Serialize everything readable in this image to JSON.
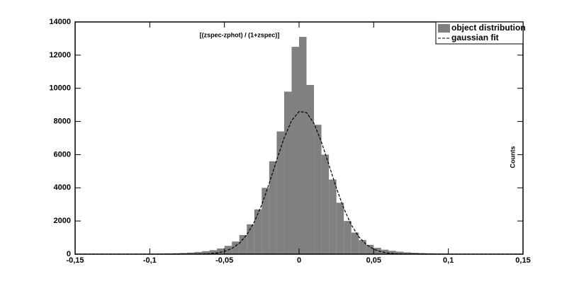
{
  "chart_data": {
    "type": "histogram",
    "annotation": "[(zspec-zphot) / (1+zspec)]",
    "y_label": "Counts",
    "bins": [
      -0.15,
      -0.145,
      -0.14,
      -0.135,
      -0.13,
      -0.125,
      -0.12,
      -0.115,
      -0.11,
      -0.105,
      -0.1,
      -0.095,
      -0.09,
      -0.085,
      -0.08,
      -0.075,
      -0.07,
      -0.065,
      -0.06,
      -0.055,
      -0.05,
      -0.045,
      -0.04,
      -0.035,
      -0.03,
      -0.025,
      -0.02,
      -0.015,
      -0.01,
      -0.005,
      0,
      0.005,
      0.01,
      0.015,
      0.02,
      0.025,
      0.03,
      0.035,
      0.04,
      0.045,
      0.05,
      0.055,
      0.06,
      0.065,
      0.07,
      0.075,
      0.08,
      0.085,
      0.09,
      0.095,
      0.1,
      0.105,
      0.11,
      0.115,
      0.12,
      0.125,
      0.13,
      0.135,
      0.14,
      0.145,
      0.15
    ],
    "series": [
      {
        "name": "object distribution",
        "color": "#808080",
        "values": [
          2,
          2,
          3,
          4,
          5,
          7,
          9,
          12,
          15,
          20,
          26,
          33,
          42,
          55,
          70,
          95,
          130,
          180,
          240,
          340,
          500,
          760,
          1150,
          1800,
          2700,
          4000,
          5600,
          7400,
          9800,
          12500,
          13100,
          10200,
          7800,
          6000,
          4500,
          3100,
          2000,
          1300,
          850,
          560,
          380,
          270,
          200,
          150,
          110,
          85,
          65,
          50,
          40,
          30,
          24,
          18,
          14,
          11,
          9,
          7,
          5,
          4,
          3,
          2
        ]
      },
      {
        "name": "gaussian fit",
        "color": "#000000",
        "type": "line",
        "dashed": true,
        "x": [
          -0.15,
          -0.08,
          -0.075,
          -0.07,
          -0.065,
          -0.06,
          -0.055,
          -0.05,
          -0.045,
          -0.04,
          -0.035,
          -0.03,
          -0.025,
          -0.02,
          -0.015,
          -0.01,
          -0.005,
          0,
          0.005,
          0.01,
          0.015,
          0.02,
          0.025,
          0.03,
          0.035,
          0.04,
          0.045,
          0.05,
          0.055,
          0.06,
          0.065,
          0.07,
          0.075,
          0.08,
          0.15
        ],
        "values": [
          0,
          1,
          2,
          4,
          12,
          31,
          75,
          166,
          342,
          656,
          1169,
          1936,
          2980,
          4263,
          5669,
          7007,
          8052,
          8600,
          8537,
          7877,
          6757,
          5386,
          3991,
          2750,
          1760,
          1048,
          580,
          298,
          142,
          63,
          26,
          10,
          4,
          1,
          0
        ]
      }
    ],
    "xlim": [
      -0.15,
      0.15
    ],
    "xticks": [
      {
        "value": -0.15,
        "label": "-0,15"
      },
      {
        "value": -0.1,
        "label": "-0,1"
      },
      {
        "value": -0.05,
        "label": "-0,05"
      },
      0,
      {
        "value": 0.05,
        "label": "0,05"
      },
      {
        "value": 0.1,
        "label": "0,1"
      },
      {
        "value": 0.15,
        "label": "0,15"
      }
    ],
    "ylim": [
      0,
      14000
    ],
    "yticks": [
      0,
      2000,
      4000,
      6000,
      8000,
      10000,
      12000,
      14000
    ],
    "legend": "top-right"
  }
}
